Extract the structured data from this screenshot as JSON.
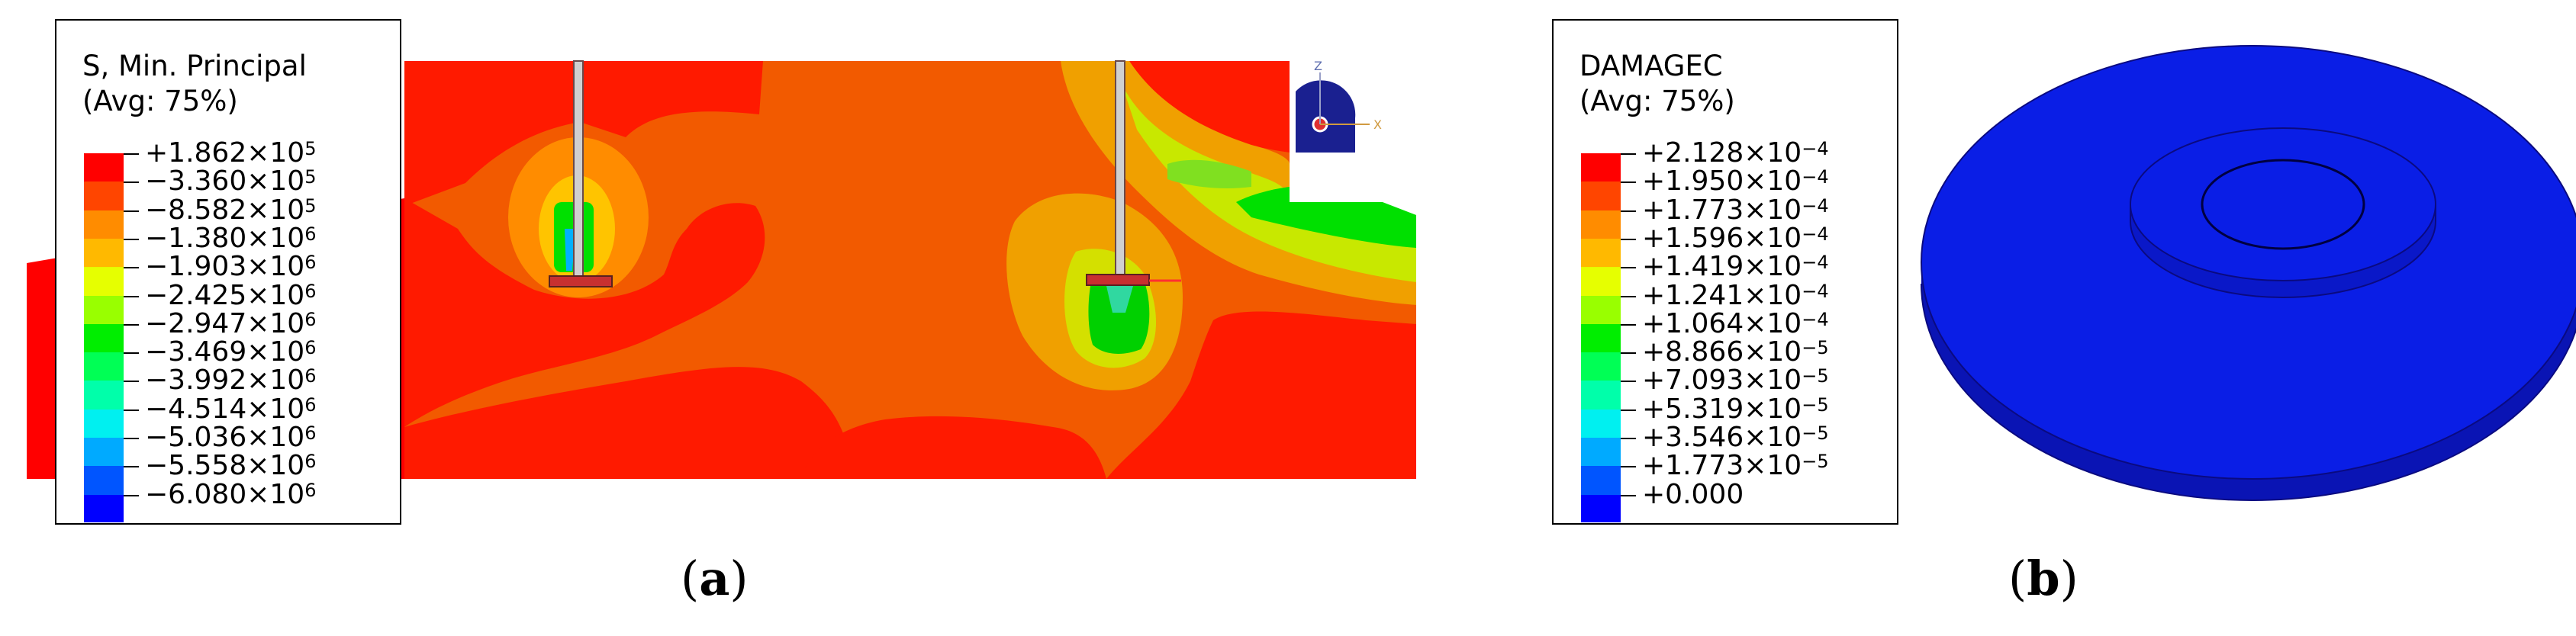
{
  "panel_a": {
    "caption_letter": "a",
    "legend": {
      "title_line1": "S, Min. Principal",
      "title_line2": "(Avg: 75%)",
      "entries": [
        {
          "value": "+1.862×10",
          "exp": "5",
          "color": "#ff0000"
        },
        {
          "value": "−3.360×10",
          "exp": "5",
          "color": "#ff4500"
        },
        {
          "value": "−8.582×10",
          "exp": "5",
          "color": "#ff8c00"
        },
        {
          "value": "−1.380×10",
          "exp": "6",
          "color": "#ffb900"
        },
        {
          "value": "−1.903×10",
          "exp": "6",
          "color": "#e6ff00"
        },
        {
          "value": "−2.425×10",
          "exp": "6",
          "color": "#99ff00"
        },
        {
          "value": "−2.947×10",
          "exp": "6",
          "color": "#00ee00"
        },
        {
          "value": "−3.469×10",
          "exp": "6",
          "color": "#00ff55"
        },
        {
          "value": "−3.992×10",
          "exp": "6",
          "color": "#00ffaa"
        },
        {
          "value": "−4.514×10",
          "exp": "6",
          "color": "#00f0f0"
        },
        {
          "value": "−5.036×10",
          "exp": "6",
          "color": "#00aaff"
        },
        {
          "value": "−5.558×10",
          "exp": "6",
          "color": "#0055ff"
        },
        {
          "value": "−6.080×10",
          "exp": "6",
          "color": "#0000ff"
        }
      ]
    },
    "triad": {
      "z_label": "Z",
      "x_label": "X"
    }
  },
  "panel_b": {
    "caption_letter": "b",
    "legend": {
      "title_line1": "DAMAGEC",
      "title_line2": "(Avg: 75%)",
      "entries": [
        {
          "value": "+2.128×10",
          "exp": "−4",
          "color": "#ff0000"
        },
        {
          "value": "+1.950×10",
          "exp": "−4",
          "color": "#ff4500"
        },
        {
          "value": "+1.773×10",
          "exp": "−4",
          "color": "#ff8c00"
        },
        {
          "value": "+1.596×10",
          "exp": "−4",
          "color": "#ffb900"
        },
        {
          "value": "+1.419×10",
          "exp": "−4",
          "color": "#e6ff00"
        },
        {
          "value": "+1.241×10",
          "exp": "−4",
          "color": "#99ff00"
        },
        {
          "value": "+1.064×10",
          "exp": "−4",
          "color": "#00ee00"
        },
        {
          "value": "+8.866×10",
          "exp": "−5",
          "color": "#00ff55"
        },
        {
          "value": "+7.093×10",
          "exp": "−5",
          "color": "#00ffaa"
        },
        {
          "value": "+5.319×10",
          "exp": "−5",
          "color": "#00f0f0"
        },
        {
          "value": "+3.546×10",
          "exp": "−5",
          "color": "#00aaff"
        },
        {
          "value": "+1.773×10",
          "exp": "−5",
          "color": "#0055ff"
        },
        {
          "value": "+0.000",
          "exp": "",
          "color": "#0000ff"
        }
      ]
    },
    "disk_color": "#0a1ee6"
  }
}
